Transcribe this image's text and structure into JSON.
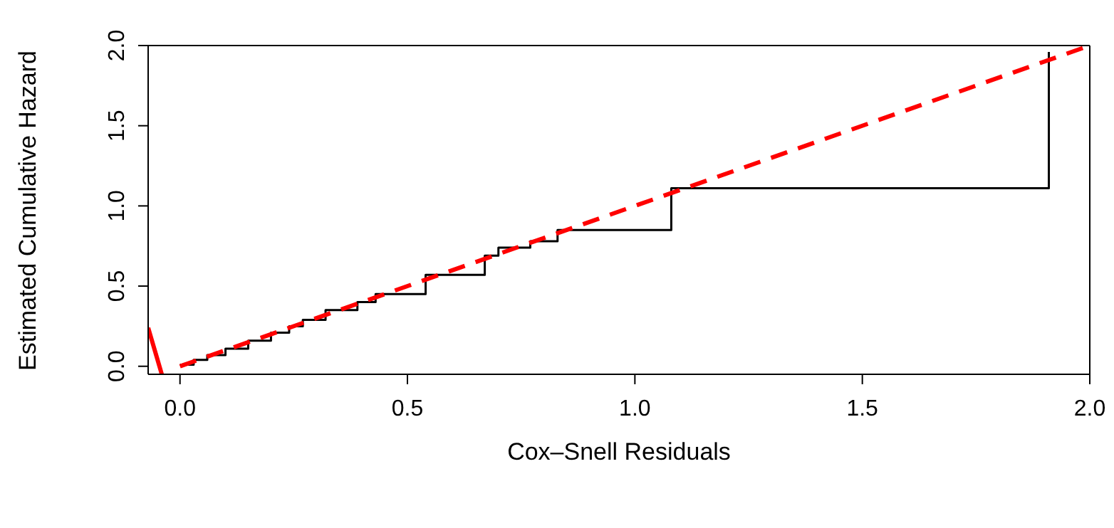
{
  "chart_data": {
    "type": "line",
    "xlabel": "Cox–Snell Residuals",
    "ylabel": "Estimated Cumulative Hazard",
    "xlim": [
      -0.07,
      2.0
    ],
    "ylim": [
      -0.05,
      2.0
    ],
    "xticks": [
      {
        "value": 0,
        "label": "0.0"
      },
      {
        "value": 0.5,
        "label": "0.5"
      },
      {
        "value": 1,
        "label": "1.0"
      },
      {
        "value": 1.5,
        "label": "1.5"
      },
      {
        "value": 2,
        "label": "2.0"
      }
    ],
    "yticks": [
      {
        "value": 0,
        "label": "0.0"
      },
      {
        "value": 0.5,
        "label": "0.5"
      },
      {
        "value": 1,
        "label": "1.0"
      },
      {
        "value": 1.5,
        "label": "1.5"
      },
      {
        "value": 2,
        "label": "2.0"
      }
    ],
    "grid": false,
    "marker": "none",
    "series": [
      {
        "type": "step",
        "color": "#000000",
        "line_style": "solid",
        "x": [
          0,
          0.03,
          0.06,
          0.1,
          0.15,
          0.2,
          0.24,
          0.27,
          0.32,
          0.39,
          0.43,
          0.54,
          0.67,
          0.7,
          0.77,
          0.83,
          1.08,
          1.91
        ],
        "values": [
          0.01,
          0.04,
          0.07,
          0.11,
          0.16,
          0.21,
          0.25,
          0.29,
          0.35,
          0.4,
          0.45,
          0.57,
          0.69,
          0.74,
          0.78,
          0.85,
          1.11,
          1.96
        ]
      },
      {
        "color": "#ff0000",
        "line_style": "dashed",
        "x": [
          0,
          2
        ],
        "values": [
          0,
          2
        ]
      },
      {
        "color": "#ff0000",
        "line_style": "solid",
        "x": [
          -0.07,
          -0.04
        ],
        "values": [
          0.24,
          -0.05
        ]
      }
    ]
  }
}
